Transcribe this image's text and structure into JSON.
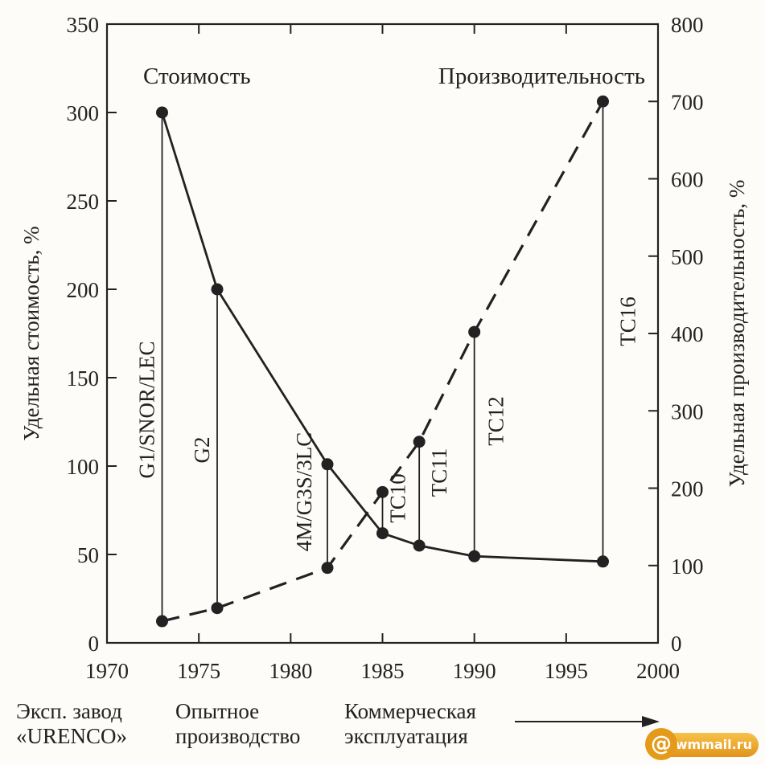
{
  "chart_data": {
    "type": "line",
    "x": [
      1973,
      1976,
      1982,
      1985,
      1987,
      1990,
      1997
    ],
    "xlim": [
      1970,
      2000
    ],
    "x_ticks": [
      "1970",
      "1975",
      "1980",
      "1985",
      "1990",
      "1995",
      "2000"
    ],
    "ylim_left": [
      0,
      350
    ],
    "y_ticks_left": [
      "0",
      "50",
      "100",
      "150",
      "200",
      "250",
      "300",
      "350"
    ],
    "ylim_right": [
      0,
      800
    ],
    "y_ticks_right": [
      "0",
      "100",
      "200",
      "300",
      "400",
      "500",
      "600",
      "700",
      "800"
    ],
    "ylabel_left": "Удельная стоимость, %",
    "ylabel_right": "Удельная производительность, %",
    "series": [
      {
        "name": "Стоимость",
        "axis": "left",
        "style": "solid",
        "x": [
          1973,
          1976,
          1982,
          1985,
          1987,
          1990,
          1997
        ],
        "values": [
          300,
          200,
          101,
          62,
          55,
          49,
          46
        ]
      },
      {
        "name": "Производительность",
        "axis": "right",
        "style": "dashed",
        "x": [
          1973,
          1976,
          1982,
          1985,
          1987,
          1990,
          1997
        ],
        "values": [
          28,
          45,
          97,
          195,
          260,
          402,
          700
        ]
      }
    ],
    "annotations": [
      {
        "text": "G1/SNOR/LEC",
        "x": 1973
      },
      {
        "text": "G2",
        "x": 1976
      },
      {
        "text": "4M/G3S/3LC",
        "x": 1982
      },
      {
        "text": "TC10",
        "x": 1985
      },
      {
        "text": "TC11",
        "x": 1987
      },
      {
        "text": "TC12",
        "x": 1990
      },
      {
        "text": "TC16",
        "x": 1997
      }
    ],
    "grid": false,
    "legend": "none"
  },
  "phases": [
    {
      "line1": "Эксп. завод",
      "line2": "«URENCO»"
    },
    {
      "line1": "Опытное",
      "line2": "производство"
    },
    {
      "line1": "Коммерческая",
      "line2": "эксплуатация"
    }
  ],
  "watermark": "wmmail.ru",
  "colors": {
    "ink": "#222222",
    "background": "#fdfcf9",
    "watermark": "#e59a1a"
  }
}
